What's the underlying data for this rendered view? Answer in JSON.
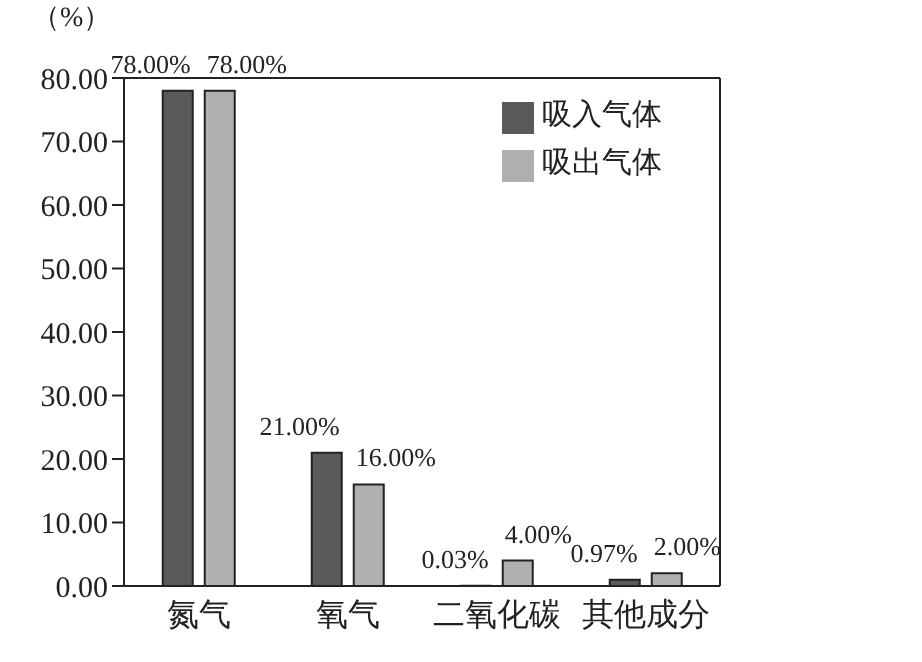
{
  "chart_data": {
    "type": "bar",
    "ylabel": "（%）",
    "categories": [
      "氮气",
      "氧气",
      "二氧化碳",
      "其他成分"
    ],
    "series": [
      {
        "name": "吸入气体",
        "color": "#5a5a5a",
        "values": [
          78,
          21,
          0.03,
          0.97
        ],
        "value_labels": [
          "78.00%",
          "21.00%",
          "0.03%",
          "0.97%"
        ]
      },
      {
        "name": "吸出气体",
        "color": "#b0b0b0",
        "values": [
          78,
          16,
          4,
          2
        ],
        "value_labels": [
          "78.00%",
          "16.00%",
          "4.00%",
          "2.00%"
        ]
      }
    ],
    "ylim": [
      0,
      80
    ],
    "yticks": [
      {
        "value": 0,
        "label": "0.00"
      },
      {
        "value": 10,
        "label": "10.00"
      },
      {
        "value": 20,
        "label": "20.00"
      },
      {
        "value": 30,
        "label": "30.00"
      },
      {
        "value": 40,
        "label": "40.00"
      },
      {
        "value": 50,
        "label": "50.00"
      },
      {
        "value": 60,
        "label": "60.00"
      },
      {
        "value": 70,
        "label": "70.00"
      },
      {
        "value": 80,
        "label": "80.00"
      }
    ],
    "grid": false,
    "legend": "top right"
  }
}
